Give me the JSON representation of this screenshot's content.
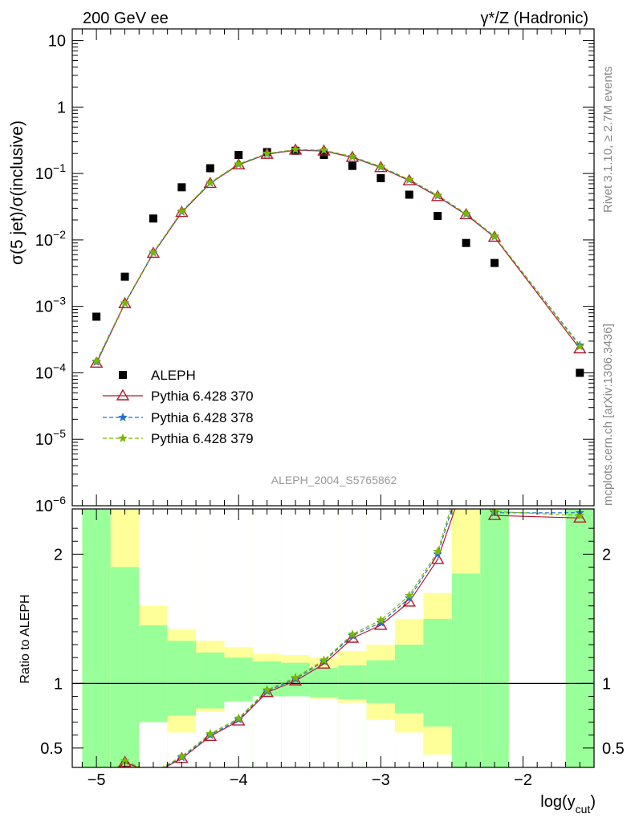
{
  "header": {
    "left_label": "200 GeV ee",
    "right_label": "γ*/Z (Hadronic)"
  },
  "side_labels": {
    "top": "Rivet 3.1.10, ≥ 2.7M events",
    "bottom": "mcplots.cern.ch [arXiv:1306.3436]"
  },
  "annotation": "ALEPH_2004_S5765862",
  "colors": {
    "aleph": "#000000",
    "p370": "#b2182b",
    "p378": "#1f6fd1",
    "p379": "#7ab800",
    "band_inner": "#99ff99",
    "band_outer": "#ffff99"
  },
  "chart_data": [
    {
      "type": "scatter",
      "ylabel": "σ(5 jet)/σ(inclusive)",
      "xlabel": "log(y_cut)",
      "y_scale": "log",
      "ylim": [
        1e-06,
        15
      ],
      "xlim": [
        -5.17,
        -1.5
      ],
      "y_ticks": [
        "10^-6",
        "10^-5",
        "10^-4",
        "10^-3",
        "10^-2",
        "10^-1",
        "1",
        "10"
      ],
      "legend_placement": "lower-left",
      "series": [
        {
          "name": "ALEPH",
          "marker": "square",
          "x": [
            -5.0,
            -4.8,
            -4.6,
            -4.4,
            -4.2,
            -4.0,
            -3.8,
            -3.6,
            -3.4,
            -3.2,
            -3.0,
            -2.8,
            -2.6,
            -2.4,
            -2.2,
            -1.6
          ],
          "y": [
            0.0007,
            0.0028,
            0.021,
            0.062,
            0.12,
            0.19,
            0.21,
            0.22,
            0.19,
            0.13,
            0.085,
            0.048,
            0.023,
            0.009,
            0.0045,
            0.0001
          ]
        },
        {
          "name": "Pythia 6.428 370",
          "marker": "triangle-open",
          "line": "solid",
          "x": [
            -5.0,
            -4.8,
            -4.6,
            -4.4,
            -4.2,
            -4.0,
            -3.8,
            -3.6,
            -3.4,
            -3.2,
            -3.0,
            -2.8,
            -2.6,
            -2.4,
            -2.2,
            -1.6
          ],
          "y": [
            0.00014,
            0.0011,
            0.0063,
            0.026,
            0.071,
            0.135,
            0.195,
            0.225,
            0.218,
            0.175,
            0.123,
            0.078,
            0.045,
            0.024,
            0.011,
            0.00023
          ]
        },
        {
          "name": "Pythia 6.428 378",
          "marker": "star",
          "line": "dashed",
          "x": [
            -5.0,
            -4.8,
            -4.6,
            -4.4,
            -4.2,
            -4.0,
            -3.8,
            -3.6,
            -3.4,
            -3.2,
            -3.0,
            -2.8,
            -2.6,
            -2.4,
            -2.2,
            -1.6
          ],
          "y": [
            0.000145,
            0.00112,
            0.0064,
            0.0265,
            0.072,
            0.137,
            0.197,
            0.228,
            0.222,
            0.178,
            0.125,
            0.08,
            0.046,
            0.0245,
            0.0112,
            0.00026
          ]
        },
        {
          "name": "Pythia 6.428 379",
          "marker": "star",
          "line": "dashed",
          "x": [
            -5.0,
            -4.8,
            -4.6,
            -4.4,
            -4.2,
            -4.0,
            -3.8,
            -3.6,
            -3.4,
            -3.2,
            -3.0,
            -2.8,
            -2.6,
            -2.4,
            -2.2,
            -1.6
          ],
          "y": [
            0.00015,
            0.00113,
            0.0065,
            0.027,
            0.073,
            0.139,
            0.2,
            0.23,
            0.224,
            0.18,
            0.127,
            0.081,
            0.047,
            0.025,
            0.0114,
            0.00025
          ]
        }
      ]
    },
    {
      "type": "line",
      "ylabel": "Ratio to ALEPH",
      "xlabel": "log(y_cut)",
      "ylim": [
        0.35,
        2.35
      ],
      "xlim": [
        -5.17,
        -1.5
      ],
      "y_ticks": [
        0.5,
        1,
        2
      ],
      "x_ticks": [
        -5,
        -4,
        -3,
        -2
      ],
      "reference_line": 1,
      "uncertainty_bands": {
        "bins": [
          [
            -5.1,
            -4.9
          ],
          [
            -4.9,
            -4.7
          ],
          [
            -4.7,
            -4.5
          ],
          [
            -4.5,
            -4.3
          ],
          [
            -4.3,
            -4.1
          ],
          [
            -4.1,
            -3.9
          ],
          [
            -3.9,
            -3.7
          ],
          [
            -3.7,
            -3.5
          ],
          [
            -3.5,
            -3.3
          ],
          [
            -3.3,
            -3.1
          ],
          [
            -3.1,
            -2.9
          ],
          [
            -2.9,
            -2.7
          ],
          [
            -2.7,
            -2.5
          ],
          [
            -2.5,
            -2.3
          ],
          [
            -2.3,
            -2.1
          ],
          [
            -1.7,
            -1.5
          ]
        ],
        "inner_low": [
          0.35,
          0.35,
          0.35,
          0.35,
          0.35,
          0.35,
          0.35,
          0.35,
          0.35,
          0.35,
          0.35,
          0.35,
          0.35,
          0.35,
          0.35,
          0.35
        ],
        "inner_high": [
          2.35,
          2.35,
          2.35,
          2.35,
          2.35,
          2.35,
          2.35,
          2.35,
          2.35,
          2.35,
          2.35,
          2.35,
          2.35,
          2.35,
          2.35,
          2.35
        ],
        "outer_low": [
          0.35,
          0.35,
          0.7,
          0.62,
          0.78,
          0.86,
          0.9,
          0.9,
          0.88,
          0.85,
          0.72,
          0.62,
          0.45,
          0.35,
          0.35,
          0.35
        ],
        "outer_high": [
          2.35,
          2.35,
          1.6,
          1.42,
          1.33,
          1.28,
          1.23,
          1.22,
          1.2,
          1.25,
          1.3,
          1.5,
          1.7,
          2.35,
          2.35,
          2.35
        ],
        "green_low": [
          0.35,
          0.35,
          0.35,
          0.35,
          0.35,
          0.35,
          0.35,
          0.35,
          0.35,
          0.35,
          0.35,
          0.35,
          0.35,
          0.35,
          0.35,
          0.35
        ],
        "green_high": [
          2.35,
          1.9,
          1.45,
          1.33,
          1.24,
          1.2,
          1.17,
          1.16,
          1.12,
          1.14,
          1.18,
          1.3,
          1.5,
          1.85,
          2.35,
          2.35
        ]
      },
      "series": [
        {
          "name": "Pythia 6.428 370",
          "x": [
            -5.0,
            -4.8,
            -4.6,
            -4.4,
            -4.2,
            -4.0,
            -3.8,
            -3.6,
            -3.4,
            -3.2,
            -3.0,
            -2.8,
            -2.6,
            -2.4,
            -2.2,
            -1.6
          ],
          "y": [
            0.2,
            0.39,
            0.3,
            0.42,
            0.59,
            0.71,
            0.93,
            1.02,
            1.15,
            1.35,
            1.45,
            1.63,
            1.96,
            2.6,
            2.3,
            2.28
          ]
        },
        {
          "name": "Pythia 6.428 378",
          "x": [
            -5.0,
            -4.8,
            -4.6,
            -4.4,
            -4.2,
            -4.0,
            -3.8,
            -3.6,
            -3.4,
            -3.2,
            -3.0,
            -2.8,
            -2.6,
            -2.4,
            -2.2,
            -1.6
          ],
          "y": [
            0.21,
            0.4,
            0.305,
            0.427,
            0.6,
            0.72,
            0.94,
            1.035,
            1.17,
            1.37,
            1.47,
            1.66,
            2.0,
            2.7,
            2.32,
            2.32
          ]
        },
        {
          "name": "Pythia 6.428 379",
          "x": [
            -5.0,
            -4.8,
            -4.6,
            -4.4,
            -4.2,
            -4.0,
            -3.8,
            -3.6,
            -3.4,
            -3.2,
            -3.0,
            -2.8,
            -2.6,
            -2.4,
            -2.2,
            -1.6
          ],
          "y": [
            0.21,
            0.4,
            0.31,
            0.435,
            0.61,
            0.73,
            0.95,
            1.045,
            1.18,
            1.38,
            1.49,
            1.68,
            2.02,
            2.75,
            2.33,
            2.3
          ]
        }
      ]
    }
  ]
}
